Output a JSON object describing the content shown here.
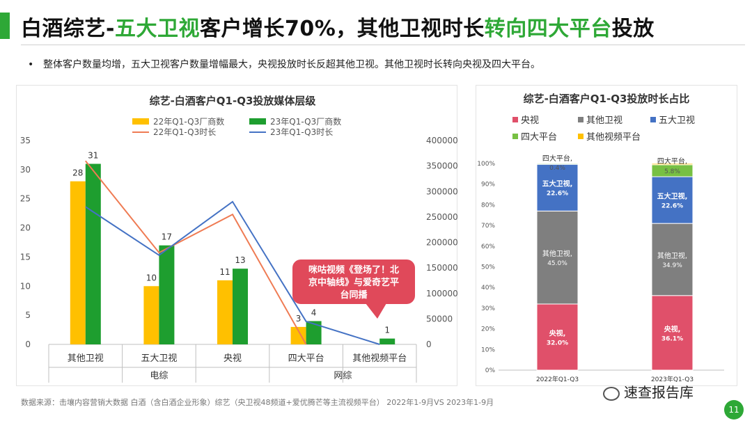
{
  "header": {
    "title_p1": "白酒综艺-",
    "title_p2": "五大卫视",
    "title_p3": "客户增长70%，其他卫视时长",
    "title_p4": "转向四大平台",
    "title_p5": "投放"
  },
  "bullet": {
    "marker": "•",
    "text": "整体客户数量均增，五大卫视客户数量增幅最大，央视投放时长反超其他卫视。其他卫视时长转向央视及四大平台。"
  },
  "source": "数据来源：击壤内容营销大数据    白酒（含白酒企业形象）综艺（央卫视48频道+爱优腾芒等主流视频平台）  2022年1-9月VS 2023年1-9月",
  "footer": {
    "brand": "速查报告库",
    "page_number": "11"
  },
  "colors": {
    "accent": "#2ea836",
    "bar22": "#ffc000",
    "bar23": "#1e9e2f",
    "line22": "#ef7b53",
    "line23": "#4472c4",
    "callout": "#e0495a",
    "cctv": "#e0506a",
    "other_sat": "#7f7f7f",
    "top5_sat": "#4472c4",
    "top4_platform": "#77c043",
    "other_video": "#ffc000"
  },
  "chart_data": [
    {
      "type": "bar",
      "title": "综艺-白酒客户Q1-Q3投放媒体层级",
      "categories": [
        "其他卫视",
        "五大卫视",
        "央视",
        "四大平台",
        "其他视频平台"
      ],
      "groups": [
        {
          "label": "电综",
          "categories": [
            "其他卫视",
            "五大卫视",
            "央视"
          ]
        },
        {
          "label": "网综",
          "categories": [
            "四大平台",
            "其他视频平台"
          ]
        }
      ],
      "series": [
        {
          "name": "22年Q1-Q3厂商数",
          "kind": "bar",
          "axis": "left",
          "values": [
            28,
            10,
            11,
            3,
            null
          ],
          "labels": [
            "28",
            "10",
            "11",
            "3",
            ""
          ]
        },
        {
          "name": "23年Q1-Q3厂商数",
          "kind": "bar",
          "axis": "left",
          "values": [
            31,
            17,
            13,
            4,
            1
          ],
          "labels": [
            "31",
            "17",
            "13",
            "4",
            "1"
          ]
        },
        {
          "name": "22年Q1-Q3时长",
          "kind": "line",
          "axis": "right",
          "values": [
            360000,
            180000,
            255000,
            0,
            null
          ]
        },
        {
          "name": "23年Q1-Q3时长",
          "kind": "line",
          "axis": "right",
          "values": [
            270000,
            175000,
            280000,
            45000,
            0
          ]
        }
      ],
      "y_left": {
        "min": 0,
        "max": 35,
        "ticks": [
          "0",
          "5",
          "10",
          "15",
          "20",
          "25",
          "30",
          "35"
        ]
      },
      "y_right": {
        "min": 0,
        "max": 400000,
        "ticks": [
          "0",
          "50000",
          "100000",
          "150000",
          "200000",
          "250000",
          "300000",
          "350000",
          "400000"
        ]
      },
      "annotation": {
        "lines": [
          "咪咕视频《登场了！北",
          "京中轴线》与爱奇艺平",
          "台同播"
        ]
      }
    },
    {
      "type": "bar",
      "stacked": true,
      "title": "综艺-白酒客户Q1-Q3投放时长占比",
      "categories": [
        "2022年Q1-Q3",
        "2023年Q1-Q3"
      ],
      "legend": [
        "央视",
        "其他卫视",
        "五大卫视",
        "四大平台",
        "其他视频平台"
      ],
      "series": [
        {
          "name": "央视",
          "values": [
            32.0,
            36.1
          ],
          "labels": [
            "央视,\n32.0%",
            "央视,\n36.1%"
          ]
        },
        {
          "name": "其他卫视",
          "values": [
            45.0,
            34.9
          ],
          "labels": [
            "其他卫视,\n45.0%",
            "其他卫视,\n34.9%"
          ]
        },
        {
          "name": "五大卫视",
          "values": [
            22.6,
            22.6
          ],
          "labels": [
            "五大卫视,\n22.6%",
            "五大卫视,\n22.6%"
          ]
        },
        {
          "name": "四大平台",
          "values": [
            0.4,
            5.8
          ],
          "labels": [
            "四大平台,\n0.4%",
            "四大平台,\n5.8%"
          ]
        },
        {
          "name": "其他视频平台",
          "values": [
            0.0,
            0.6
          ],
          "labels": [
            "",
            ""
          ]
        }
      ],
      "ylim": [
        0,
        100
      ],
      "y_ticks": [
        "0%",
        "10%",
        "20%",
        "30%",
        "40%",
        "50%",
        "60%",
        "70%",
        "80%",
        "90%",
        "100%"
      ]
    }
  ]
}
